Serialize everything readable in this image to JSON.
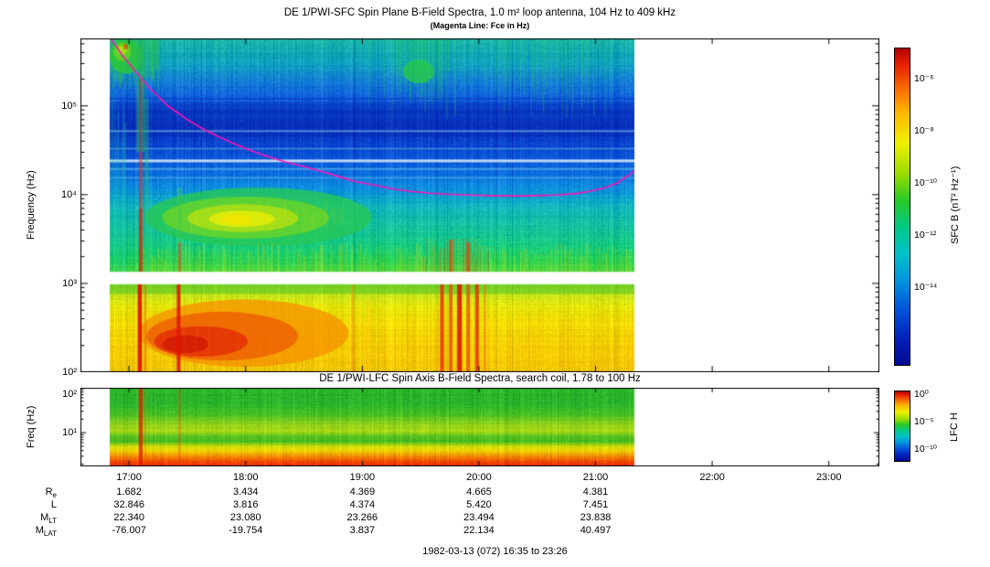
{
  "top_panel": {
    "title": "DE 1/PWI-SFC  Spin Plane B-Field Spectra, 1.0 m² loop antenna, 104 Hz to 409 kHz",
    "subtitle": "(Magenta Line: Fce in Hz)",
    "ylabel": "Frequency (Hz)",
    "yticks": [
      "10⁵",
      "10⁴",
      "10³",
      "10²"
    ],
    "colorbar": {
      "label": "SFC B (nT² Hz⁻¹)",
      "ticks": [
        "10⁻⁶",
        "10⁻⁸",
        "10⁻¹⁰",
        "10⁻¹²",
        "10⁻¹⁴"
      ]
    }
  },
  "bottom_panel": {
    "title": "DE 1/PWI-LFC  Spin Axis B-Field Spectra, search coil, 1.78 to 100 Hz",
    "ylabel": "Freq (Hz)",
    "yticks": [
      "10²",
      "10¹"
    ],
    "colorbar": {
      "label": "LFC H",
      "ticks": [
        "10⁰",
        "10⁻⁵",
        "10⁻¹⁰"
      ]
    }
  },
  "xaxis": {
    "ticks": [
      "17:00",
      "18:00",
      "19:00",
      "20:00",
      "21:00",
      "22:00",
      "23:00"
    ]
  },
  "ephemeris": {
    "rows": [
      {
        "label": "R",
        "sub": "e",
        "values": [
          "1.682",
          "3.434",
          "4.369",
          "4.665",
          "4.381"
        ]
      },
      {
        "label": "L",
        "sub": "",
        "values": [
          "32.846",
          "3.816",
          "4.374",
          "5.420",
          "7.451"
        ]
      },
      {
        "label": "M",
        "sub": "LT",
        "values": [
          "22.340",
          "23.080",
          "23.266",
          "23.494",
          "23.838"
        ]
      },
      {
        "label": "M",
        "sub": "LAT",
        "values": [
          "-76.007",
          "-19.754",
          "3.837",
          "22.134",
          "40.497"
        ]
      }
    ]
  },
  "footer": "1982-03-13 (072) 16:35 to 23:26",
  "chart_data": {
    "type": "heatmap",
    "subtype": "frequency-time spectrogram, log frequency axis, rainbow color scale",
    "date": "1982-03-13",
    "day_of_year": "072",
    "time_start": "16:35",
    "time_end": "23:26",
    "time_ticks_minutes": [
      25,
      85,
      145,
      205,
      265,
      325,
      385
    ],
    "data_time_span_minutes": [
      15,
      285
    ],
    "sfc_panel": {
      "freq_min_hz": 104,
      "freq_max_hz": 409000,
      "yticks_hz": [
        100000,
        10000,
        1000,
        100
      ],
      "value_scale": [
        "1e-14",
        "1e-6"
      ],
      "units": "nT² Hz⁻¹"
    },
    "lfc_panel": {
      "freq_min_hz": 1.78,
      "freq_max_hz": 100,
      "yticks_hz": [
        100,
        10
      ],
      "value_scale": [
        "1e-10",
        "1e0"
      ]
    },
    "fce_line_t_f": [
      [
        15,
        600000
      ],
      [
        22,
        360000
      ],
      [
        30,
        220000
      ],
      [
        36,
        155000
      ],
      [
        45,
        100000
      ],
      [
        55,
        70000
      ],
      [
        65,
        52000
      ],
      [
        74,
        42000
      ],
      [
        85,
        33000
      ],
      [
        95,
        27500
      ],
      [
        105,
        23500
      ],
      [
        114,
        21000
      ],
      [
        125,
        18000
      ],
      [
        135,
        15500
      ],
      [
        142,
        14000
      ],
      [
        152,
        12700
      ],
      [
        162,
        11500
      ],
      [
        170,
        10900
      ],
      [
        180,
        10400
      ],
      [
        190,
        10100
      ],
      [
        200,
        9900
      ],
      [
        215,
        9700
      ],
      [
        230,
        9700
      ],
      [
        245,
        9900
      ],
      [
        255,
        10300
      ],
      [
        263,
        11000
      ],
      [
        270,
        12000
      ],
      [
        276,
        13500
      ],
      [
        281,
        16000
      ],
      [
        285,
        18500
      ]
    ],
    "sfc": {
      "gap_hz": [
        980,
        1350
      ],
      "dark_band": {
        "f1": 45000,
        "f2": 110000,
        "c": "#0520a0",
        "a": 0.3
      },
      "base_stops": [
        [
          560000,
          "#18b2a8"
        ],
        [
          300000,
          "#10a0c0"
        ],
        [
          180000,
          "#1478d8"
        ],
        [
          100000,
          "#0c50dc"
        ],
        [
          60000,
          "#0838c8"
        ],
        [
          40000,
          "#0840cc"
        ],
        [
          28000,
          "#0a54d8"
        ],
        [
          18000,
          "#0c6ee0"
        ],
        [
          12000,
          "#0e8ede"
        ],
        [
          9000,
          "#10aacc"
        ],
        [
          6000,
          "#12bcb0"
        ],
        [
          4000,
          "#14c49a"
        ],
        [
          2600,
          "#18cc7e"
        ],
        [
          1800,
          "#22d45c"
        ],
        [
          1350,
          "#52da40"
        ],
        [
          975,
          "#8ede2e"
        ],
        [
          760,
          "#c4e41c"
        ],
        [
          560,
          "#e6e60a"
        ],
        [
          360,
          "#f2dc04"
        ],
        [
          200,
          "#f6d002"
        ],
        [
          100,
          "#f2c606"
        ]
      ],
      "horizontal_lines": [
        {
          "f": 52000,
          "h": 2,
          "c": "#9adcf2",
          "a": 0.5
        },
        {
          "f": 33000,
          "h": 2,
          "c": "#7cc8ec",
          "a": 0.45
        },
        {
          "f": 24000,
          "h": 3,
          "c": "#d8f0f8",
          "a": 0.85
        },
        {
          "f": 19500,
          "h": 2,
          "c": "#8cd4f0",
          "a": 0.45
        },
        {
          "f": 15500,
          "h": 2,
          "c": "#7cc8ec",
          "a": 0.35
        },
        {
          "f": 64000,
          "h": 2,
          "c": "#0a2cb0",
          "a": 0.5
        },
        {
          "f": 86000,
          "h": 3,
          "c": "#0824a8",
          "a": 0.45
        },
        {
          "f": 120000,
          "h": 2,
          "c": "#0a2cb0",
          "a": 0.4
        }
      ],
      "patches": [
        {
          "t1": 15,
          "t2": 32,
          "f1": 230000,
          "f2": 560000,
          "c": "#2fc832",
          "a": 0.75
        },
        {
          "t1": 17,
          "t2": 26,
          "f1": 320000,
          "f2": 520000,
          "c": "#7ad41e",
          "a": 0.7
        },
        {
          "t1": 19,
          "t2": 24,
          "f1": 380000,
          "f2": 480000,
          "c": "#cfe60a",
          "a": 0.6
        },
        {
          "t1": 22,
          "t2": 24.5,
          "f1": 430000,
          "f2": 500000,
          "c": "#e83010",
          "a": 0.6
        },
        {
          "t1": 166,
          "t2": 182,
          "f1": 180000,
          "f2": 330000,
          "c": "#2ed22e",
          "a": 0.7
        }
      ],
      "chorus": [
        {
          "t1": 33,
          "t2": 150,
          "f1": 2600,
          "f2": 12000,
          "c": "#28c855",
          "a": 0.8
        },
        {
          "t1": 42,
          "t2": 128,
          "f1": 3200,
          "f2": 9500,
          "c": "#6ad428",
          "a": 0.8
        },
        {
          "t1": 55,
          "t2": 112,
          "f1": 3800,
          "f2": 7800,
          "c": "#b4e014",
          "a": 0.8
        },
        {
          "t1": 66,
          "t2": 100,
          "f1": 4300,
          "f2": 6600,
          "c": "#e4ec08",
          "a": 0.85
        },
        {
          "t1": 72,
          "t2": 88,
          "f1": 4600,
          "f2": 6000,
          "c": "#f4e400",
          "a": 0.8
        }
      ],
      "low_strip": {
        "f1": 760,
        "f2": 975,
        "c": "#5cc41e",
        "a": 0.55
      },
      "low_blob": [
        {
          "t1": 30,
          "t2": 138,
          "f1": 115,
          "f2": 660,
          "c": "#f59000",
          "a": 0.75
        },
        {
          "t1": 34,
          "t2": 112,
          "f1": 135,
          "f2": 480,
          "c": "#ee5e04",
          "a": 0.8
        },
        {
          "t1": 38,
          "t2": 86,
          "f1": 150,
          "f2": 330,
          "c": "#e32c08",
          "a": 0.8
        },
        {
          "t1": 42,
          "t2": 66,
          "f1": 165,
          "f2": 260,
          "c": "#cc1406",
          "a": 0.7
        }
      ],
      "streaks": [
        {
          "t": 30.5,
          "w": 4.5,
          "f1": 100,
          "f2": 975,
          "c": "#e01800",
          "a": 0.95
        },
        {
          "t": 33.5,
          "w": 2,
          "f1": 100,
          "f2": 975,
          "c": "#f06000",
          "a": 0.6
        },
        {
          "t": 31,
          "w": 4,
          "f1": 1350,
          "f2": 7000,
          "c": "#e02810",
          "a": 0.8
        },
        {
          "t": 31,
          "w": 4,
          "f1": 7000,
          "f2": 30000,
          "c": "#d84420",
          "a": 0.55
        },
        {
          "t": 31,
          "w": 9,
          "f1": 30000,
          "f2": 560000,
          "c": "#28b860",
          "a": 0.5
        },
        {
          "t": 31,
          "w": 3,
          "f1": 30000,
          "f2": 200000,
          "c": "#c03028",
          "a": 0.45
        },
        {
          "t": 34,
          "w": 5,
          "f1": 1350,
          "f2": 120000,
          "c": "#30c070",
          "a": 0.35
        },
        {
          "t": 50.5,
          "w": 4,
          "f1": 100,
          "f2": 975,
          "c": "#e01800",
          "a": 0.9
        },
        {
          "t": 51,
          "w": 3,
          "f1": 1350,
          "f2": 2900,
          "c": "#e04820",
          "a": 0.6
        },
        {
          "t": 51,
          "w": 5,
          "f1": 2900,
          "f2": 12000,
          "c": "#40c850",
          "a": 0.4
        },
        {
          "t": 140,
          "w": 3,
          "f1": 100,
          "f2": 975,
          "c": "#f08800",
          "a": 0.45
        },
        {
          "t": 186,
          "w": 4,
          "f1": 100,
          "f2": 975,
          "c": "#e82800",
          "a": 0.8
        },
        {
          "t": 190.5,
          "w": 4,
          "f1": 100,
          "f2": 3100,
          "c": "#e84410",
          "a": 0.75
        },
        {
          "t": 195,
          "w": 5,
          "f1": 100,
          "f2": 975,
          "c": "#dc1800",
          "a": 0.9
        },
        {
          "t": 199.5,
          "w": 4,
          "f1": 100,
          "f2": 2900,
          "c": "#e84410",
          "a": 0.7
        },
        {
          "t": 204,
          "w": 4,
          "f1": 100,
          "f2": 975,
          "c": "#e82800",
          "a": 0.8
        },
        {
          "t": 208,
          "w": 2.5,
          "f1": 100,
          "f2": 975,
          "c": "#f06000",
          "a": 0.5
        }
      ]
    },
    "lfc": {
      "base_stops": [
        [
          100,
          "#28b428"
        ],
        [
          45,
          "#2cb42c"
        ],
        [
          28,
          "#40bc24"
        ],
        [
          16,
          "#8cd01c"
        ],
        [
          11,
          "#a8d818"
        ],
        [
          9,
          "#60c41e"
        ],
        [
          6.5,
          "#46bc20"
        ],
        [
          5.2,
          "#c8d80a"
        ],
        [
          4.2,
          "#ecdc02"
        ],
        [
          3.2,
          "#f49800"
        ],
        [
          2.5,
          "#f05800"
        ],
        [
          2.0,
          "#ea3404"
        ],
        [
          1.78,
          "#e62802"
        ]
      ],
      "streaks": [
        {
          "t": 31,
          "w": 4.5,
          "f1": 1.78,
          "f2": 100,
          "c": "#e01800",
          "a": 0.75
        },
        {
          "t": 33.5,
          "w": 2,
          "f1": 1.78,
          "f2": 100,
          "c": "#f06000",
          "a": 0.35
        },
        {
          "t": 51,
          "w": 3,
          "f1": 1.78,
          "f2": 100,
          "c": "#e04000",
          "a": 0.3
        }
      ]
    }
  }
}
